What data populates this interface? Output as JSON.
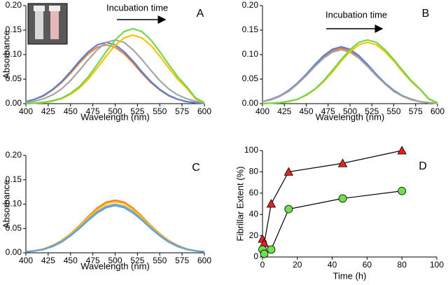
{
  "chart_data": [
    {
      "type": "line",
      "label": "A",
      "annotations": [
        {
          "text": "Incubation time"
        }
      ],
      "xlabel": "Wavelength (nm)",
      "ylabel": "Absorbance",
      "x": [
        400,
        410,
        420,
        430,
        440,
        450,
        460,
        470,
        480,
        490,
        500,
        510,
        520,
        530,
        540,
        550,
        560,
        570,
        580,
        590,
        600
      ],
      "xlim": [
        400,
        600
      ],
      "xticks": [
        400,
        425,
        450,
        475,
        500,
        525,
        550,
        575,
        600
      ],
      "ylim": [
        0,
        0.2
      ],
      "yticks": [
        {
          "value": 0,
          "label": "0.00"
        },
        {
          "value": 0.05,
          "label": "0.05"
        },
        {
          "value": 0.1,
          "label": "0.10"
        },
        {
          "value": 0.15,
          "label": "0.15"
        },
        {
          "value": 0.2,
          "label": "0.20"
        }
      ],
      "series": [
        {
          "color": "#ed7d31",
          "values": [
            0.004,
            0.009,
            0.016,
            0.028,
            0.043,
            0.062,
            0.083,
            0.102,
            0.115,
            0.12,
            0.115,
            0.102,
            0.083,
            0.062,
            0.043,
            0.028,
            0.016,
            0.009,
            0.004,
            0.002,
            0.001
          ]
        },
        {
          "color": "#5b7fd4",
          "values": [
            0.004,
            0.009,
            0.017,
            0.029,
            0.045,
            0.065,
            0.087,
            0.106,
            0.12,
            0.125,
            0.12,
            0.106,
            0.087,
            0.065,
            0.045,
            0.029,
            0.017,
            0.009,
            0.004,
            0.002,
            0.001
          ]
        },
        {
          "color": "#a5a5a5",
          "values": [
            0.002,
            0.005,
            0.01,
            0.018,
            0.03,
            0.047,
            0.068,
            0.09,
            0.11,
            0.125,
            0.13,
            0.125,
            0.11,
            0.09,
            0.068,
            0.047,
            0.03,
            0.018,
            0.01,
            0.005,
            0.002
          ]
        },
        {
          "color": "#ffc000",
          "values": [
            0,
            0.001,
            0.002,
            0.005,
            0.01,
            0.019,
            0.032,
            0.05,
            0.073,
            0.097,
            0.119,
            0.134,
            0.14,
            0.134,
            0.119,
            0.097,
            0.073,
            0.05,
            0.032,
            0.01,
            0.002
          ]
        },
        {
          "color": "#70d84a",
          "values": [
            0,
            0.001,
            0.003,
            0.006,
            0.011,
            0.021,
            0.035,
            0.055,
            0.08,
            0.106,
            0.13,
            0.147,
            0.153,
            0.147,
            0.13,
            0.106,
            0.08,
            0.055,
            0.035,
            0.012,
            0.002
          ]
        }
      ]
    },
    {
      "type": "line",
      "label": "B",
      "annotations": [
        {
          "text": "Incubation time"
        }
      ],
      "xlabel": "Wavelength (nm)",
      "x": [
        400,
        410,
        420,
        430,
        440,
        450,
        460,
        470,
        480,
        490,
        500,
        510,
        520,
        530,
        540,
        550,
        560,
        570,
        580,
        590,
        600
      ],
      "xlim": [
        400,
        600
      ],
      "xticks": [
        400,
        425,
        450,
        475,
        500,
        525,
        550,
        575,
        600
      ],
      "ylim": [
        0,
        0.2
      ],
      "yticks": [
        {
          "value": 0,
          "label": "0.00"
        },
        {
          "value": 0.05,
          "label": "0.05"
        },
        {
          "value": 0.1,
          "label": "0.10"
        },
        {
          "value": 0.15,
          "label": "0.15"
        },
        {
          "value": 0.2,
          "label": "0.20"
        }
      ],
      "series": [
        {
          "color": "#ed7d31",
          "values": [
            0.004,
            0.008,
            0.015,
            0.026,
            0.041,
            0.059,
            0.078,
            0.096,
            0.108,
            0.113,
            0.108,
            0.096,
            0.078,
            0.059,
            0.041,
            0.026,
            0.015,
            0.008,
            0.004,
            0.002,
            0.001
          ]
        },
        {
          "color": "#5b7fd4",
          "values": [
            0.004,
            0.009,
            0.016,
            0.027,
            0.042,
            0.06,
            0.08,
            0.098,
            0.111,
            0.116,
            0.111,
            0.098,
            0.08,
            0.06,
            0.042,
            0.027,
            0.016,
            0.009,
            0.004,
            0.002,
            0.001
          ]
        },
        {
          "color": "#a5a5a5",
          "values": [
            0.004,
            0.008,
            0.015,
            0.025,
            0.04,
            0.057,
            0.076,
            0.093,
            0.105,
            0.11,
            0.105,
            0.093,
            0.076,
            0.057,
            0.04,
            0.025,
            0.015,
            0.008,
            0.004,
            0.002,
            0.001
          ]
        },
        {
          "color": "#ffc000",
          "values": [
            0,
            0.001,
            0.002,
            0.004,
            0.009,
            0.017,
            0.029,
            0.045,
            0.065,
            0.087,
            0.106,
            0.12,
            0.125,
            0.12,
            0.106,
            0.087,
            0.065,
            0.045,
            0.029,
            0.009,
            0.002
          ]
        },
        {
          "color": "#70d84a",
          "values": [
            0,
            0.001,
            0.002,
            0.005,
            0.009,
            0.018,
            0.03,
            0.047,
            0.068,
            0.09,
            0.11,
            0.125,
            0.13,
            0.125,
            0.11,
            0.09,
            0.068,
            0.047,
            0.03,
            0.01,
            0.002
          ]
        }
      ]
    },
    {
      "type": "line",
      "label": "C",
      "xlabel": "Wavelength (nm)",
      "ylabel": "Absorbance",
      "x": [
        400,
        410,
        420,
        430,
        440,
        450,
        460,
        470,
        480,
        490,
        500,
        510,
        520,
        530,
        540,
        550,
        560,
        570,
        580,
        590,
        600
      ],
      "xlim": [
        400,
        600
      ],
      "xticks": [
        400,
        425,
        450,
        475,
        500,
        525,
        550,
        575,
        600
      ],
      "ylim": [
        0,
        0.2
      ],
      "yticks": [
        {
          "value": 0,
          "label": "0.00"
        },
        {
          "value": 0.05,
          "label": "0.05"
        },
        {
          "value": 0.1,
          "label": "0.10"
        },
        {
          "value": 0.15,
          "label": "0.15"
        },
        {
          "value": 0.2,
          "label": "0.20"
        }
      ],
      "series": [
        {
          "color": "#ed7d31",
          "values": [
            0.002,
            0.004,
            0.008,
            0.015,
            0.025,
            0.039,
            0.056,
            0.075,
            0.092,
            0.104,
            0.108,
            0.104,
            0.092,
            0.075,
            0.056,
            0.039,
            0.025,
            0.015,
            0.008,
            0.004,
            0.002
          ]
        },
        {
          "color": "#ffc000",
          "values": [
            0.002,
            0.004,
            0.008,
            0.014,
            0.024,
            0.038,
            0.055,
            0.073,
            0.089,
            0.101,
            0.105,
            0.101,
            0.089,
            0.073,
            0.055,
            0.038,
            0.024,
            0.014,
            0.008,
            0.004,
            0.002
          ]
        },
        {
          "color": "#a5a5a5",
          "values": [
            0.002,
            0.004,
            0.007,
            0.014,
            0.023,
            0.036,
            0.052,
            0.069,
            0.085,
            0.096,
            0.1,
            0.096,
            0.085,
            0.069,
            0.052,
            0.036,
            0.023,
            0.014,
            0.007,
            0.004,
            0.002
          ]
        },
        {
          "color": "#5ba3d9",
          "values": [
            0.002,
            0.004,
            0.007,
            0.013,
            0.022,
            0.035,
            0.05,
            0.067,
            0.082,
            0.093,
            0.097,
            0.093,
            0.082,
            0.067,
            0.05,
            0.035,
            0.022,
            0.013,
            0.007,
            0.004,
            0.002
          ]
        }
      ]
    },
    {
      "type": "scatter",
      "label": "D",
      "xlabel": "Time (h)",
      "ylabel": "Fibrillar Extent (%)",
      "xlim": [
        0,
        100
      ],
      "xticks": [
        0,
        20,
        40,
        60,
        80,
        100
      ],
      "ylim": [
        0,
        100
      ],
      "yticks": [
        0,
        20,
        40,
        60,
        80,
        100
      ],
      "series": [
        {
          "color": "#e8201e",
          "marker": "triangle",
          "x": [
            0,
            1,
            5,
            15,
            46,
            80
          ],
          "values": [
            17,
            13,
            50,
            80,
            88,
            100
          ]
        },
        {
          "color": "#6ee04a",
          "marker": "circle",
          "x": [
            0,
            1,
            5,
            15,
            46,
            80
          ],
          "values": [
            7,
            3,
            7,
            45,
            55,
            62
          ]
        }
      ]
    }
  ]
}
